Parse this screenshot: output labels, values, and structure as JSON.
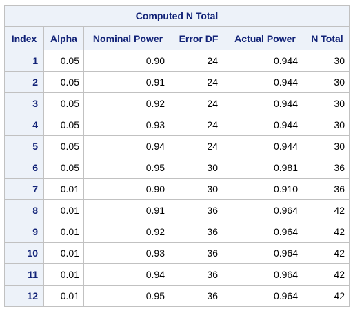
{
  "table": {
    "title": "Computed N Total",
    "columns": [
      "Index",
      "Alpha",
      "Nominal Power",
      "Error DF",
      "Actual Power",
      "N Total"
    ],
    "rows": [
      {
        "index": "1",
        "alpha": "0.05",
        "nominal_power": "0.90",
        "error_df": "24",
        "actual_power": "0.944",
        "n_total": "30"
      },
      {
        "index": "2",
        "alpha": "0.05",
        "nominal_power": "0.91",
        "error_df": "24",
        "actual_power": "0.944",
        "n_total": "30"
      },
      {
        "index": "3",
        "alpha": "0.05",
        "nominal_power": "0.92",
        "error_df": "24",
        "actual_power": "0.944",
        "n_total": "30"
      },
      {
        "index": "4",
        "alpha": "0.05",
        "nominal_power": "0.93",
        "error_df": "24",
        "actual_power": "0.944",
        "n_total": "30"
      },
      {
        "index": "5",
        "alpha": "0.05",
        "nominal_power": "0.94",
        "error_df": "24",
        "actual_power": "0.944",
        "n_total": "30"
      },
      {
        "index": "6",
        "alpha": "0.05",
        "nominal_power": "0.95",
        "error_df": "30",
        "actual_power": "0.981",
        "n_total": "36"
      },
      {
        "index": "7",
        "alpha": "0.01",
        "nominal_power": "0.90",
        "error_df": "30",
        "actual_power": "0.910",
        "n_total": "36"
      },
      {
        "index": "8",
        "alpha": "0.01",
        "nominal_power": "0.91",
        "error_df": "36",
        "actual_power": "0.964",
        "n_total": "42"
      },
      {
        "index": "9",
        "alpha": "0.01",
        "nominal_power": "0.92",
        "error_df": "36",
        "actual_power": "0.964",
        "n_total": "42"
      },
      {
        "index": "10",
        "alpha": "0.01",
        "nominal_power": "0.93",
        "error_df": "36",
        "actual_power": "0.964",
        "n_total": "42"
      },
      {
        "index": "11",
        "alpha": "0.01",
        "nominal_power": "0.94",
        "error_df": "36",
        "actual_power": "0.964",
        "n_total": "42"
      },
      {
        "index": "12",
        "alpha": "0.01",
        "nominal_power": "0.95",
        "error_df": "36",
        "actual_power": "0.964",
        "n_total": "42"
      }
    ]
  },
  "colors": {
    "header_background": "#edf2f9",
    "header_text": "#112277",
    "border": "#c1c1c1"
  }
}
